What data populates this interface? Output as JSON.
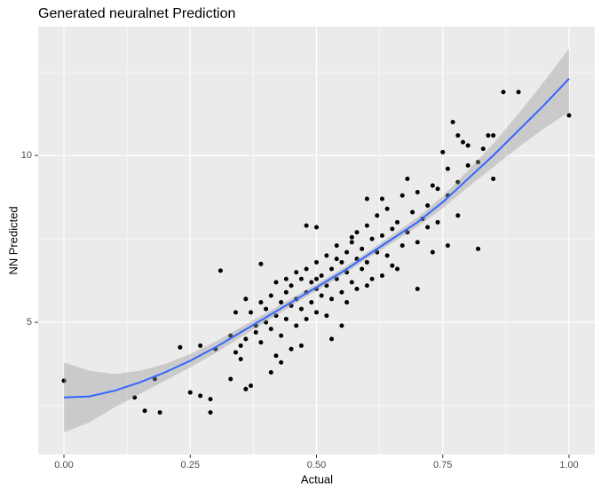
{
  "chart_data": {
    "type": "scatter",
    "title": "Generated neuralnet Prediction",
    "x_label": "Actual",
    "y_label": "NN Predicted",
    "xlim": [
      -0.051,
      1.051
    ],
    "ylim": [
      1.04,
      13.86
    ],
    "xticks": [
      {
        "value": 0,
        "label": "0.00"
      },
      {
        "value": 0.25,
        "label": "0.25"
      },
      {
        "value": 0.5,
        "label": "0.50"
      },
      {
        "value": 0.75,
        "label": "0.75"
      },
      {
        "value": 1,
        "label": "1.00"
      }
    ],
    "yticks": [
      5,
      10
    ],
    "x_minor_grid": [
      0.125,
      0.375,
      0.625,
      0.875
    ],
    "y_minor_grid": [
      2.5,
      7.5,
      12.5
    ],
    "point_color": "#000000",
    "line_color": "#3366ff",
    "band_color": "#999999",
    "points": {
      "x": [
        0.0,
        0.14,
        0.16,
        0.18,
        0.19,
        0.23,
        0.25,
        0.27,
        0.27,
        0.29,
        0.29,
        0.3,
        0.31,
        0.33,
        0.34,
        0.35,
        0.36,
        0.37,
        0.38,
        0.39,
        0.41,
        0.42,
        0.43,
        0.44,
        0.45,
        0.47,
        0.48,
        0.5,
        0.53,
        0.55,
        0.57,
        0.6,
        0.63,
        0.68,
        0.7,
        0.72,
        0.73,
        0.74,
        0.77,
        0.78,
        0.8,
        0.82,
        0.83,
        0.85,
        0.87,
        0.9,
        1.0,
        0.85,
        0.76,
        0.78,
        0.75,
        0.79,
        0.84,
        0.33,
        0.34,
        0.35,
        0.36,
        0.37,
        0.38,
        0.39,
        0.4,
        0.4,
        0.41,
        0.41,
        0.42,
        0.43,
        0.43,
        0.44,
        0.44,
        0.45,
        0.45,
        0.46,
        0.46,
        0.47,
        0.47,
        0.48,
        0.48,
        0.49,
        0.49,
        0.5,
        0.5,
        0.5,
        0.51,
        0.51,
        0.52,
        0.52,
        0.53,
        0.53,
        0.54,
        0.54,
        0.55,
        0.55,
        0.56,
        0.56,
        0.57,
        0.57,
        0.58,
        0.58,
        0.59,
        0.59,
        0.6,
        0.6,
        0.61,
        0.61,
        0.62,
        0.62,
        0.63,
        0.64,
        0.64,
        0.65,
        0.65,
        0.66,
        0.67,
        0.67,
        0.68,
        0.69,
        0.7,
        0.7,
        0.71,
        0.72,
        0.73,
        0.74,
        0.76,
        0.76,
        0.78,
        0.8,
        0.82,
        0.36,
        0.39,
        0.42,
        0.46,
        0.52,
        0.56,
        0.6,
        0.63,
        0.66,
        0.5,
        0.48,
        0.54,
        0.58
      ],
      "y": [
        3.25,
        2.75,
        2.35,
        3.3,
        2.3,
        4.25,
        2.9,
        2.8,
        4.3,
        2.3,
        2.7,
        4.2,
        6.55,
        3.3,
        5.3,
        3.9,
        3.0,
        3.1,
        4.9,
        6.75,
        3.5,
        4.0,
        3.8,
        6.3,
        4.2,
        4.3,
        7.9,
        7.85,
        4.5,
        4.9,
        7.55,
        8.7,
        6.4,
        9.3,
        6.0,
        7.85,
        7.1,
        9.0,
        11.0,
        10.6,
        9.7,
        7.2,
        10.2,
        10.6,
        11.9,
        11.9,
        11.2,
        9.3,
        7.3,
        8.2,
        10.1,
        10.4,
        10.6,
        4.6,
        4.1,
        4.3,
        4.5,
        5.3,
        4.7,
        5.6,
        5.0,
        5.4,
        4.8,
        5.8,
        5.2,
        5.6,
        4.6,
        5.9,
        5.1,
        5.5,
        6.1,
        5.7,
        4.9,
        6.3,
        5.4,
        5.9,
        6.6,
        5.6,
        6.2,
        6.0,
        6.8,
        5.3,
        6.4,
        5.8,
        7.0,
        6.1,
        6.6,
        5.7,
        7.3,
        6.3,
        6.8,
        5.9,
        7.1,
        6.5,
        7.4,
        6.2,
        6.9,
        7.7,
        6.6,
        7.2,
        7.9,
        6.8,
        7.5,
        6.3,
        7.1,
        8.2,
        7.6,
        7.0,
        8.4,
        7.8,
        6.7,
        8.0,
        7.3,
        8.8,
        7.7,
        8.3,
        7.4,
        8.9,
        8.1,
        8.5,
        9.1,
        8.0,
        8.8,
        9.6,
        9.2,
        10.3,
        9.8,
        5.7,
        4.4,
        6.2,
        6.5,
        5.2,
        5.6,
        6.1,
        8.7,
        6.6,
        6.3,
        5.1,
        6.9,
        6.0
      ]
    },
    "smooth": {
      "x": [
        0,
        0.05,
        0.1,
        0.15,
        0.2,
        0.25,
        0.3,
        0.35,
        0.4,
        0.45,
        0.5,
        0.55,
        0.6,
        0.65,
        0.7,
        0.75,
        0.8,
        0.85,
        0.9,
        0.95,
        1.0
      ],
      "values": [
        2.75,
        2.78,
        2.95,
        3.2,
        3.5,
        3.85,
        4.25,
        4.7,
        5.15,
        5.6,
        6.05,
        6.5,
        7.0,
        7.5,
        8.0,
        8.6,
        9.3,
        10.0,
        10.75,
        11.5,
        12.3
      ],
      "lower": [
        1.7,
        2.0,
        2.45,
        2.85,
        3.25,
        3.65,
        4.08,
        4.55,
        5.02,
        5.49,
        5.95,
        6.4,
        6.9,
        7.38,
        7.86,
        8.42,
        9.05,
        9.65,
        10.25,
        10.8,
        11.3
      ],
      "upper": [
        3.8,
        3.55,
        3.45,
        3.55,
        3.75,
        4.05,
        4.42,
        4.85,
        5.28,
        5.71,
        6.15,
        6.6,
        7.1,
        7.62,
        8.14,
        8.78,
        9.55,
        10.35,
        11.25,
        12.2,
        13.2
      ]
    }
  }
}
